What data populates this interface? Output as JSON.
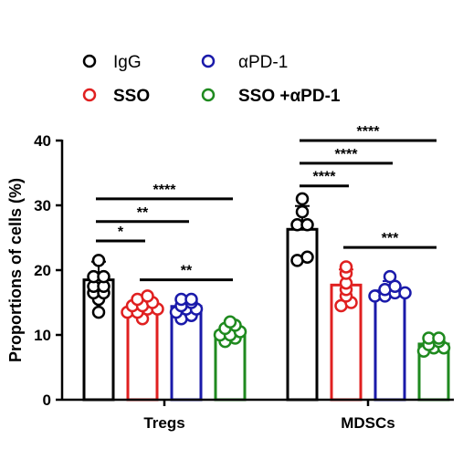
{
  "chart_data": {
    "type": "bar",
    "title": "",
    "ylabel": "Proportions of cells (%)",
    "xlabel": "",
    "ylim": [
      0,
      40
    ],
    "yticks": [
      0,
      10,
      20,
      30,
      40
    ],
    "categories": [
      "Tregs",
      "MDSCs"
    ],
    "error_bars": "mean ± SD",
    "series": [
      {
        "name": "IgG",
        "color": "#000000",
        "values": [
          18.5,
          26.3
        ],
        "errors": [
          2.8,
          3.6
        ],
        "points": [
          [
            21.5,
            19.0,
            19.0,
            17.5,
            17.5,
            16.5,
            16.5,
            15.5,
            13.5
          ],
          [
            31.0,
            29.0,
            27.0,
            27.0,
            22.0,
            21.5
          ]
        ]
      },
      {
        "name": "SSO",
        "color": "#e02020",
        "values": [
          14.6,
          17.7
        ],
        "errors": [
          1.4,
          2.4
        ],
        "points": [
          [
            16.0,
            15.5,
            15.0,
            14.5,
            14.5,
            14.0,
            14.0,
            13.5,
            13.5,
            12.5
          ],
          [
            20.5,
            19.5,
            18.0,
            17.0,
            16.0,
            15.0,
            14.5
          ]
        ]
      },
      {
        "name": "αPD-1",
        "color": "#1a1aaa",
        "values": [
          14.4,
          16.8
        ],
        "errors": [
          1.3,
          1.5
        ],
        "points": [
          [
            15.5,
            15.5,
            15.0,
            14.5,
            14.0,
            14.0,
            13.5,
            13.0,
            12.5
          ],
          [
            19.0,
            17.5,
            17.0,
            16.5,
            16.5,
            16.0,
            16.0
          ]
        ]
      },
      {
        "name": "SSO +αPD-1",
        "color": "#1f8a1f",
        "values": [
          10.4,
          8.6
        ],
        "errors": [
          1.3,
          0.9
        ],
        "points": [
          [
            12.0,
            11.5,
            11.0,
            10.5,
            10.0,
            10.0,
            9.5,
            9.0
          ],
          [
            9.5,
            9.5,
            9.0,
            8.5,
            8.0,
            8.0,
            7.5
          ]
        ]
      }
    ],
    "legend": {
      "placement": "top",
      "rows": [
        [
          {
            "series": 0,
            "label": "IgG",
            "bold": false
          },
          {
            "series": 2,
            "label": "αPD-1",
            "bold": false
          }
        ],
        [
          {
            "series": 1,
            "label": "SSO",
            "bold": true
          },
          {
            "series": 3,
            "label": "SSO +αPD-1",
            "bold": true
          }
        ]
      ]
    },
    "significance": [
      {
        "category": 0,
        "from": 0,
        "to": 1,
        "y": 24.5,
        "label": "*"
      },
      {
        "category": 0,
        "from": 0,
        "to": 2,
        "y": 27.5,
        "label": "**"
      },
      {
        "category": 0,
        "from": 0,
        "to": 3,
        "y": 31.0,
        "label": "****"
      },
      {
        "category": 0,
        "from": 1,
        "to": 3,
        "y": 18.5,
        "label": "**"
      },
      {
        "category": 1,
        "from": 0,
        "to": 1,
        "y": 33.0,
        "label": "****"
      },
      {
        "category": 1,
        "from": 0,
        "to": 2,
        "y": 36.5,
        "label": "****"
      },
      {
        "category": 1,
        "from": 0,
        "to": 3,
        "y": 40.0,
        "label": "****"
      },
      {
        "category": 1,
        "from": 1,
        "to": 3,
        "y": 23.5,
        "label": "***"
      }
    ]
  }
}
